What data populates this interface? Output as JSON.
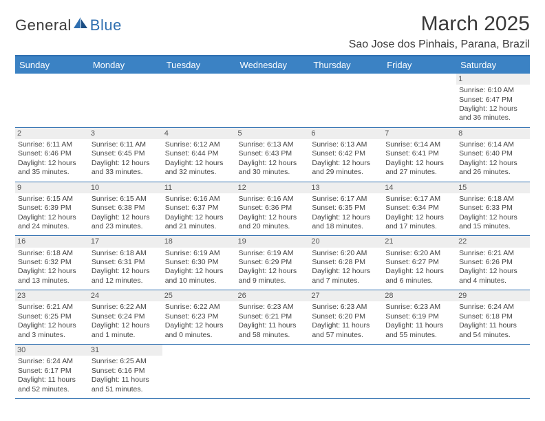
{
  "logo": {
    "text_dark": "General",
    "text_blue": "Blue"
  },
  "title": {
    "month": "March 2025",
    "location": "Sao Jose dos Pinhais, Parana, Brazil"
  },
  "colors": {
    "accent": "#3b82c4",
    "rule": "#2f6fb0",
    "text": "#3a3a3a",
    "daybg": "#eeeeee"
  },
  "weekdays": [
    "Sunday",
    "Monday",
    "Tuesday",
    "Wednesday",
    "Thursday",
    "Friday",
    "Saturday"
  ],
  "weeks": [
    [
      null,
      null,
      null,
      null,
      null,
      null,
      {
        "n": "1",
        "sr": "6:10 AM",
        "ss": "6:47 PM",
        "dh": "12",
        "dm": "36"
      }
    ],
    [
      {
        "n": "2",
        "sr": "6:11 AM",
        "ss": "6:46 PM",
        "dh": "12",
        "dm": "35"
      },
      {
        "n": "3",
        "sr": "6:11 AM",
        "ss": "6:45 PM",
        "dh": "12",
        "dm": "33"
      },
      {
        "n": "4",
        "sr": "6:12 AM",
        "ss": "6:44 PM",
        "dh": "12",
        "dm": "32"
      },
      {
        "n": "5",
        "sr": "6:13 AM",
        "ss": "6:43 PM",
        "dh": "12",
        "dm": "30"
      },
      {
        "n": "6",
        "sr": "6:13 AM",
        "ss": "6:42 PM",
        "dh": "12",
        "dm": "29"
      },
      {
        "n": "7",
        "sr": "6:14 AM",
        "ss": "6:41 PM",
        "dh": "12",
        "dm": "27"
      },
      {
        "n": "8",
        "sr": "6:14 AM",
        "ss": "6:40 PM",
        "dh": "12",
        "dm": "26"
      }
    ],
    [
      {
        "n": "9",
        "sr": "6:15 AM",
        "ss": "6:39 PM",
        "dh": "12",
        "dm": "24"
      },
      {
        "n": "10",
        "sr": "6:15 AM",
        "ss": "6:38 PM",
        "dh": "12",
        "dm": "23"
      },
      {
        "n": "11",
        "sr": "6:16 AM",
        "ss": "6:37 PM",
        "dh": "12",
        "dm": "21"
      },
      {
        "n": "12",
        "sr": "6:16 AM",
        "ss": "6:36 PM",
        "dh": "12",
        "dm": "20"
      },
      {
        "n": "13",
        "sr": "6:17 AM",
        "ss": "6:35 PM",
        "dh": "12",
        "dm": "18"
      },
      {
        "n": "14",
        "sr": "6:17 AM",
        "ss": "6:34 PM",
        "dh": "12",
        "dm": "17"
      },
      {
        "n": "15",
        "sr": "6:18 AM",
        "ss": "6:33 PM",
        "dh": "12",
        "dm": "15"
      }
    ],
    [
      {
        "n": "16",
        "sr": "6:18 AM",
        "ss": "6:32 PM",
        "dh": "12",
        "dm": "13"
      },
      {
        "n": "17",
        "sr": "6:18 AM",
        "ss": "6:31 PM",
        "dh": "12",
        "dm": "12"
      },
      {
        "n": "18",
        "sr": "6:19 AM",
        "ss": "6:30 PM",
        "dh": "12",
        "dm": "10"
      },
      {
        "n": "19",
        "sr": "6:19 AM",
        "ss": "6:29 PM",
        "dh": "12",
        "dm": "9"
      },
      {
        "n": "20",
        "sr": "6:20 AM",
        "ss": "6:28 PM",
        "dh": "12",
        "dm": "7"
      },
      {
        "n": "21",
        "sr": "6:20 AM",
        "ss": "6:27 PM",
        "dh": "12",
        "dm": "6"
      },
      {
        "n": "22",
        "sr": "6:21 AM",
        "ss": "6:26 PM",
        "dh": "12",
        "dm": "4"
      }
    ],
    [
      {
        "n": "23",
        "sr": "6:21 AM",
        "ss": "6:25 PM",
        "dh": "12",
        "dm": "3"
      },
      {
        "n": "24",
        "sr": "6:22 AM",
        "ss": "6:24 PM",
        "dh": "12",
        "dm": "1",
        "dm_word": "minute"
      },
      {
        "n": "25",
        "sr": "6:22 AM",
        "ss": "6:23 PM",
        "dh": "12",
        "dm": "0"
      },
      {
        "n": "26",
        "sr": "6:23 AM",
        "ss": "6:21 PM",
        "dh": "11",
        "dm": "58"
      },
      {
        "n": "27",
        "sr": "6:23 AM",
        "ss": "6:20 PM",
        "dh": "11",
        "dm": "57"
      },
      {
        "n": "28",
        "sr": "6:23 AM",
        "ss": "6:19 PM",
        "dh": "11",
        "dm": "55"
      },
      {
        "n": "29",
        "sr": "6:24 AM",
        "ss": "6:18 PM",
        "dh": "11",
        "dm": "54"
      }
    ],
    [
      {
        "n": "30",
        "sr": "6:24 AM",
        "ss": "6:17 PM",
        "dh": "11",
        "dm": "52"
      },
      {
        "n": "31",
        "sr": "6:25 AM",
        "ss": "6:16 PM",
        "dh": "11",
        "dm": "51"
      },
      null,
      null,
      null,
      null,
      null
    ]
  ],
  "labels": {
    "sunrise": "Sunrise:",
    "sunset": "Sunset:",
    "daylight": "Daylight:",
    "hours": "hours",
    "and": "and",
    "minutes": "minutes."
  }
}
